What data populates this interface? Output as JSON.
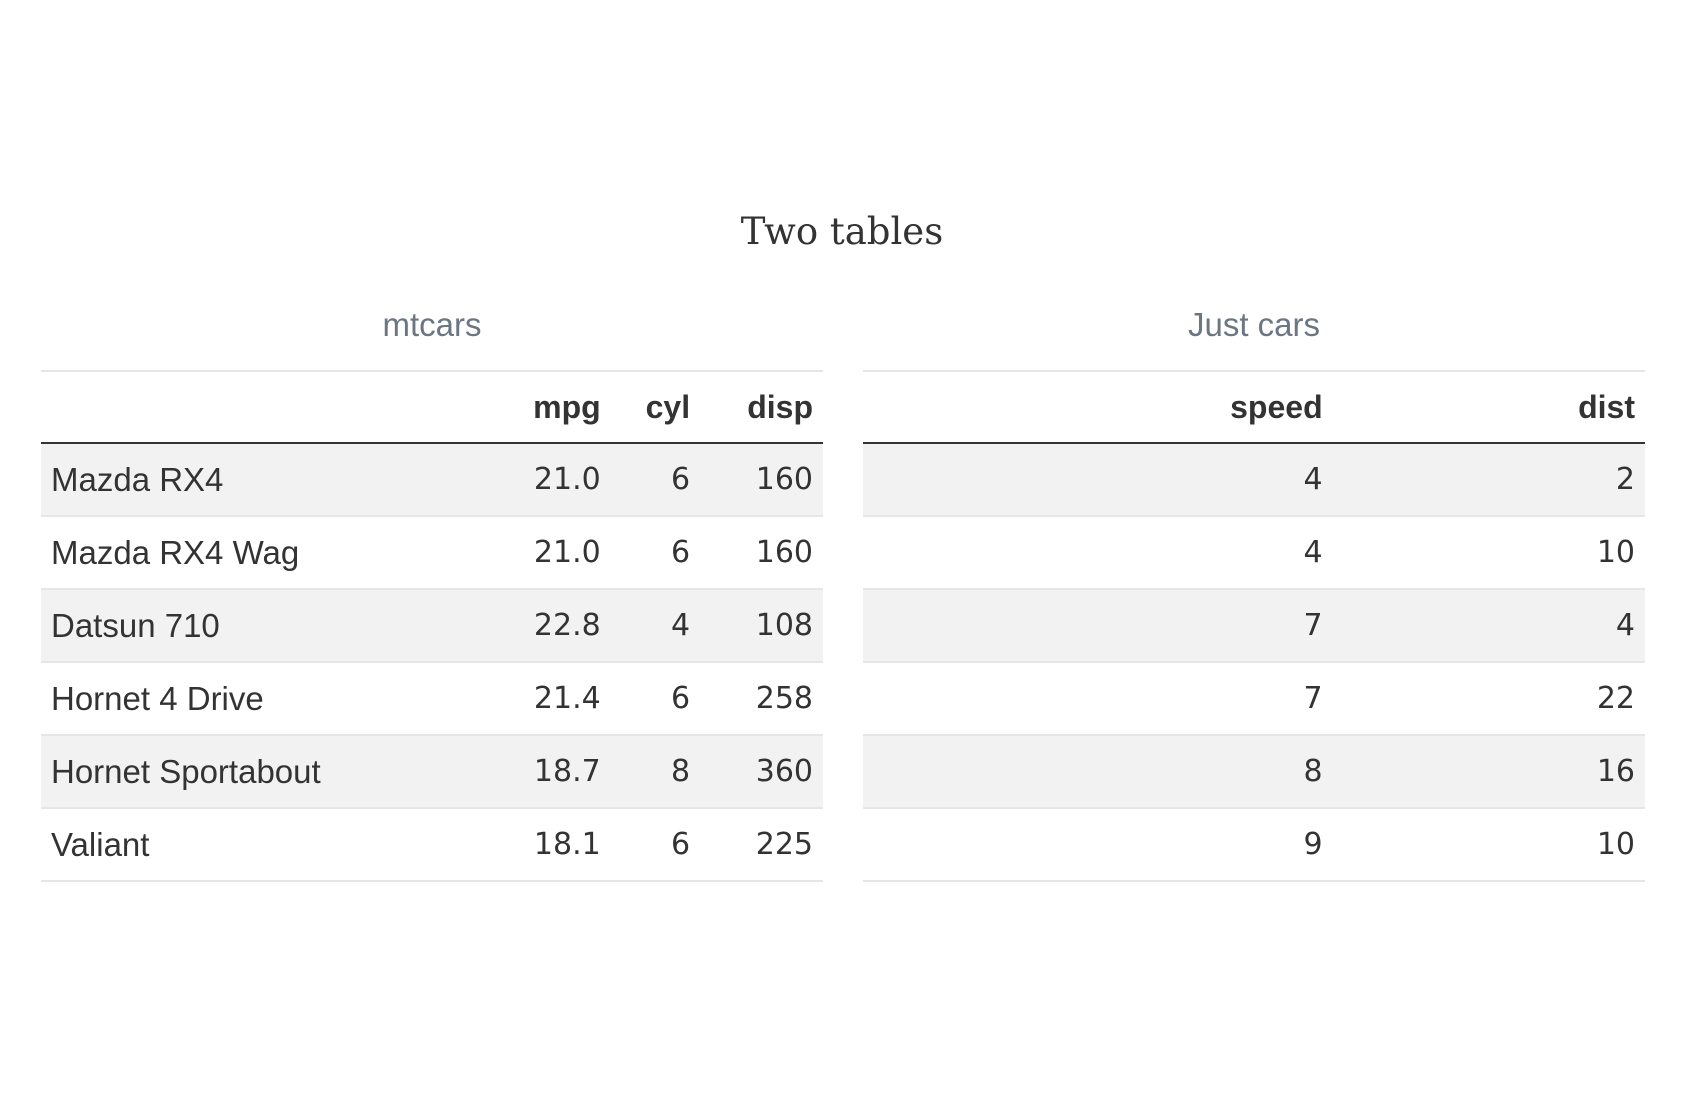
{
  "title": "Two tables",
  "chart_data": [
    {
      "type": "table",
      "title": "mtcars",
      "columns": [
        "",
        "mpg",
        "cyl",
        "disp"
      ],
      "rows": [
        [
          "Mazda RX4",
          "21.0",
          "6",
          "160"
        ],
        [
          "Mazda RX4 Wag",
          "21.0",
          "6",
          "160"
        ],
        [
          "Datsun 710",
          "22.8",
          "4",
          "108"
        ],
        [
          "Hornet 4 Drive",
          "21.4",
          "6",
          "258"
        ],
        [
          "Hornet Sportabout",
          "18.7",
          "8",
          "360"
        ],
        [
          "Valiant",
          "18.1",
          "6",
          "225"
        ]
      ]
    },
    {
      "type": "table",
      "title": "Just cars",
      "columns": [
        "speed",
        "dist"
      ],
      "rows": [
        [
          "4",
          "2"
        ],
        [
          "4",
          "10"
        ],
        [
          "7",
          "4"
        ],
        [
          "7",
          "22"
        ],
        [
          "8",
          "16"
        ],
        [
          "9",
          "10"
        ]
      ]
    }
  ]
}
